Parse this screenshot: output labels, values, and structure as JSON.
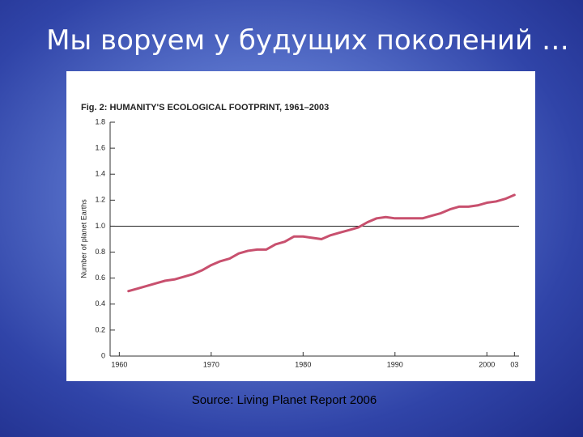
{
  "slide": {
    "title": "Мы воруем у будущих поколений …",
    "source": "Source: Living Planet Report 2006"
  },
  "chart_data": {
    "type": "line",
    "title": "Fig. 2: HUMANITY'S ECOLOGICAL FOOTPRINT, 1961–2003",
    "y_label": "Number of planet Earths",
    "x": [
      1961,
      1962,
      1963,
      1964,
      1965,
      1966,
      1967,
      1968,
      1969,
      1970,
      1971,
      1972,
      1973,
      1974,
      1975,
      1976,
      1977,
      1978,
      1979,
      1980,
      1981,
      1982,
      1983,
      1984,
      1985,
      1986,
      1987,
      1988,
      1989,
      1990,
      1991,
      1992,
      1993,
      1994,
      1995,
      1996,
      1997,
      1998,
      1999,
      2000,
      2001,
      2002,
      2003
    ],
    "values": [
      0.5,
      0.52,
      0.54,
      0.56,
      0.58,
      0.59,
      0.61,
      0.63,
      0.66,
      0.7,
      0.73,
      0.75,
      0.79,
      0.81,
      0.82,
      0.82,
      0.86,
      0.88,
      0.92,
      0.92,
      0.91,
      0.9,
      0.93,
      0.95,
      0.97,
      0.99,
      1.03,
      1.06,
      1.07,
      1.06,
      1.06,
      1.06,
      1.06,
      1.08,
      1.1,
      1.13,
      1.15,
      1.15,
      1.16,
      1.18,
      1.19,
      1.21,
      1.24
    ],
    "color": "#c8506e",
    "reference_line": 1,
    "xlim": [
      1959,
      2003.5
    ],
    "ylim": [
      0,
      1.8
    ],
    "xticks": [
      1960,
      1970,
      1980,
      1990,
      2000,
      {
        "value": 2003,
        "label": "03"
      }
    ],
    "yticks": [
      0,
      0.2,
      0.4,
      0.6,
      0.8,
      {
        "value": 1,
        "label": "1.0"
      },
      1.2,
      1.4,
      1.6,
      1.8
    ]
  }
}
